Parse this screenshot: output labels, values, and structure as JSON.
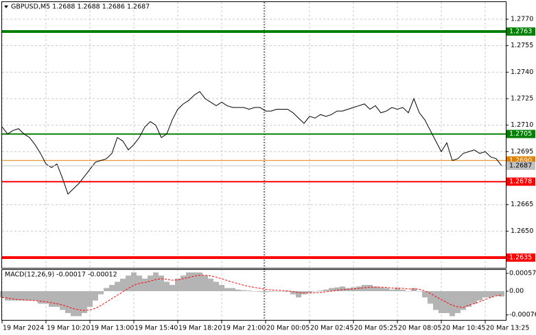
{
  "chart_data": [
    {
      "type": "line",
      "title": "GBPUSD,M5  1.2688 1.2688 1.2686 1.2687",
      "categories": [
        "19 Mar 2024",
        null,
        null,
        null,
        null,
        null,
        null,
        null,
        "19 Mar 10:20",
        null,
        null,
        null,
        null,
        null,
        null,
        null,
        "19 Mar 13:00",
        null,
        null,
        null,
        null,
        null,
        null,
        null,
        "19 Mar 15:40",
        null,
        null,
        null,
        null,
        null,
        null,
        null,
        "19 Mar 18:20",
        null,
        null,
        null,
        null,
        null,
        null,
        null,
        "19 Mar 21:00",
        null,
        null,
        null,
        null,
        null,
        null,
        null,
        "20 Mar 00:05",
        null,
        null,
        null,
        null,
        null,
        null,
        null,
        "20 Mar 02:45",
        null,
        null,
        null,
        null,
        null,
        null,
        null,
        "20 Mar 05:25",
        null,
        null,
        null,
        null,
        null,
        null,
        null,
        "20 Mar 08:05",
        null,
        null,
        null,
        null,
        null,
        null,
        null,
        "20 Mar 10:45",
        null,
        null,
        null,
        null,
        null,
        null,
        null,
        "20 Mar 13:25",
        null,
        null,
        null
      ],
      "series": [
        {
          "color": "#000000",
          "values": [
            1.2709,
            1.2705,
            1.2707,
            1.2708,
            1.2705,
            1.2703,
            1.2699,
            1.2694,
            1.2688,
            1.2686,
            1.2688,
            1.268,
            1.2671,
            1.2674,
            1.2677,
            1.2681,
            1.2685,
            1.2689,
            1.269,
            1.2691,
            1.2694,
            1.2703,
            1.2701,
            1.2696,
            1.2699,
            1.2703,
            1.2709,
            1.2712,
            1.271,
            1.2703,
            1.2705,
            1.2713,
            1.2719,
            1.2722,
            1.2724,
            1.2727,
            1.2729,
            1.2725,
            1.2723,
            1.2721,
            1.2723,
            1.2721,
            1.272,
            1.272,
            1.272,
            1.2719,
            1.272,
            1.272,
            1.2718,
            1.2718,
            1.2719,
            1.2719,
            1.2719,
            1.2717,
            1.2714,
            1.2711,
            1.2715,
            1.2714,
            1.2716,
            1.2715,
            1.2716,
            1.2718,
            1.2718,
            1.2719,
            1.272,
            1.2721,
            1.2722,
            1.2719,
            1.2721,
            1.2717,
            1.2718,
            1.272,
            1.2719,
            1.272,
            1.2717,
            1.2725,
            1.2717,
            1.2713,
            1.2707,
            1.2701,
            1.2695,
            1.27,
            1.269,
            1.2691,
            1.2694,
            1.2695,
            1.2696,
            1.2694,
            1.2695,
            1.2692,
            1.2691,
            1.2687
          ]
        }
      ],
      "levels": [
        {
          "value": 1.2763,
          "color": "#008000",
          "style": "thick"
        },
        {
          "value": 1.2705,
          "color": "#008000",
          "style": "medium"
        },
        {
          "value": 1.269,
          "label": "1.2690",
          "color": "#e08000",
          "style": "thin"
        },
        {
          "value": 1.2678,
          "color": "#ff0000",
          "style": "medium"
        },
        {
          "value": 1.2635,
          "color": "#ff0000",
          "style": "thick"
        }
      ],
      "ylim": [
        1.26292,
        1.27797
      ],
      "yticks": [
        {
          "value": 1.277,
          "label": "1.2770"
        },
        1.2755,
        {
          "value": 1.274,
          "label": "1.2740"
        },
        1.2725,
        {
          "value": 1.271,
          "label": "1.2710"
        },
        1.2695,
        1.2665,
        {
          "value": 1.265,
          "label": "1.2650"
        }
      ],
      "grid": true
    },
    {
      "type": "macd",
      "title": "MACD(12,26,9) -0.00017 -0.00012",
      "series": [
        {
          "color": "#b4b4b4",
          "values": [
            -0.0002,
            -0.0003,
            -0.0003,
            -0.0003,
            -0.0003,
            -0.0003,
            -0.0003,
            -0.0004,
            -0.0004,
            -0.0005,
            -0.0005,
            -0.0006,
            -0.0007,
            -0.0008,
            -0.0008,
            -0.0007,
            -0.0005,
            -0.0003,
            -0.0001,
            0.0001,
            0.0002,
            0.0003,
            0.0004,
            0.0005,
            0.0006,
            0.0005,
            0.0004,
            0.0005,
            0.0006,
            0.0005,
            0.0003,
            0.0002,
            0.0004,
            0.0005,
            0.0006,
            0.0006,
            0.0006,
            0.0005,
            0.0004,
            0.0003,
            0.0002,
            0.0001,
            0.0001,
            5e-05,
            3e-05,
            2e-05,
            0,
            -2e-05,
            -3e-05,
            -2e-05,
            -1e-05,
            0,
            -2e-05,
            -0.0001,
            -0.0002,
            -0.0001,
            -5e-05,
            0,
            2e-05,
            5e-05,
            0.0001,
            0.00012,
            0.00015,
            0.0001,
            0.00012,
            0.00015,
            0.0002,
            0.0002,
            0.00015,
            0.00012,
            0.0001,
            5e-05,
            0.0001,
            5e-05,
            0,
            0.0001,
            0,
            -0.0002,
            -0.0004,
            -0.0006,
            -0.0007,
            -0.0007,
            -0.0008,
            -0.0007,
            -0.0006,
            -0.0005,
            -0.0004,
            -0.0003,
            -0.0002,
            -0.0002,
            -0.00015,
            -0.00017
          ]
        },
        {
          "color": "#ff0000",
          "values": [
            -0.0002,
            -0.00022,
            -0.00025,
            -0.00027,
            -0.00028,
            -0.00029,
            -0.0003,
            -0.00032,
            -0.00034,
            -0.00037,
            -0.0004,
            -0.00044,
            -0.0005,
            -0.00056,
            -0.0006,
            -0.00062,
            -0.0006,
            -0.00055,
            -0.00046,
            -0.00035,
            -0.00024,
            -0.00013,
            -2e-05,
            9e-05,
            0.00019,
            0.00025,
            0.00028,
            0.00032,
            0.00037,
            0.0004,
            0.00038,
            0.00035,
            0.00036,
            0.0004,
            0.00044,
            0.00048,
            0.00051,
            0.00051,
            0.00049,
            0.00045,
            0.0004,
            0.00034,
            0.00029,
            0.00024,
            0.00019,
            0.00015,
            0.00012,
            9e-05,
            6e-05,
            4e-05,
            3e-05,
            2e-05,
            1e-05,
            -1e-05,
            -5e-05,
            -6e-05,
            -6e-05,
            -5e-05,
            -4e-05,
            -2e-05,
            0,
            3e-05,
            5e-05,
            6e-05,
            7e-05,
            9e-05,
            0.00011,
            0.00013,
            0.00013,
            0.00013,
            0.00012,
            0.0001,
            0.0001,
            9e-05,
            7e-05,
            7e-05,
            6e-05,
            1e-05,
            -7e-05,
            -0.00017,
            -0.00027,
            -0.00036,
            -0.00045,
            -0.0005,
            -0.00052,
            -0.00045,
            -0.0004,
            -0.00034,
            -0.00027,
            -0.0002,
            -0.00015,
            -0.00012
          ]
        }
      ],
      "ylim": [
        -0.00092,
        0.00068
      ],
      "yticks": [
        0.00057,
        {
          "value": 0,
          "label": "0.00"
        },
        -0.00076
      ]
    }
  ]
}
